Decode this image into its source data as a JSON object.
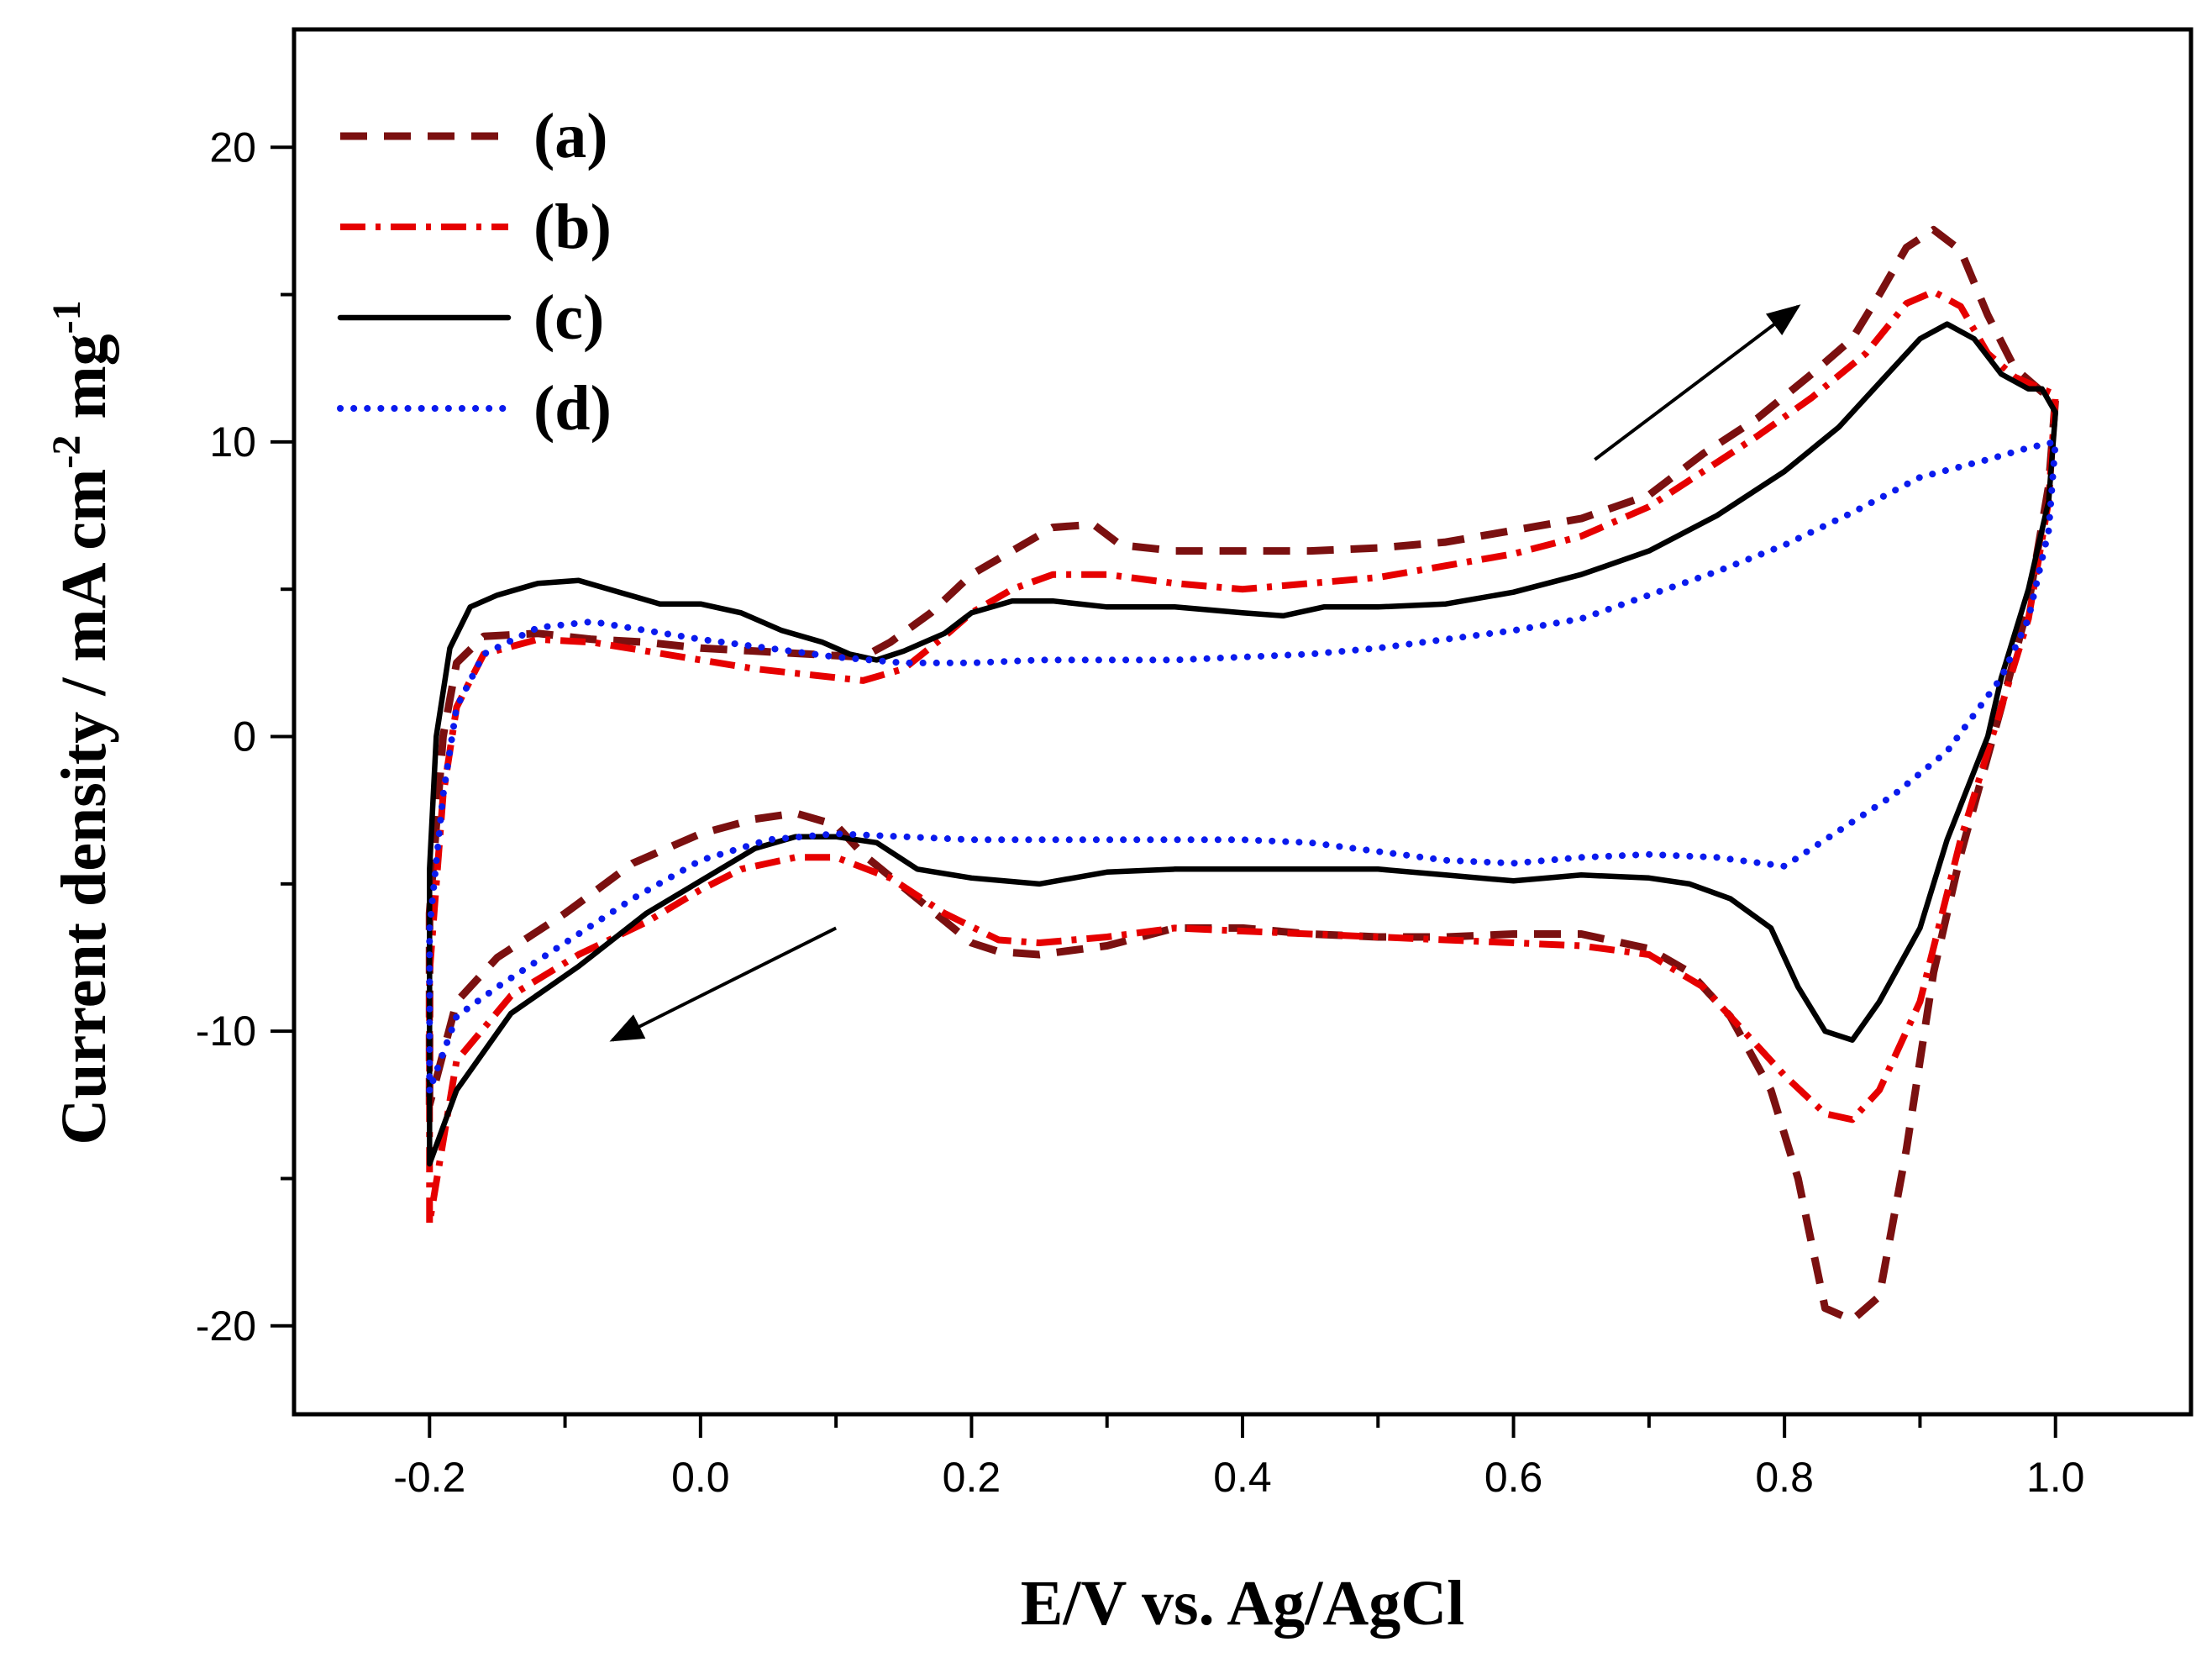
{
  "chart_data": {
    "type": "line",
    "xlabel": "E/V vs. Ag/AgCl",
    "ylabel_main": "Current density / mA cm",
    "ylabel_parts": [
      {
        "text": "Current density / mA cm",
        "sup": false
      },
      {
        "text": "-2",
        "sup": true
      },
      {
        "text": " mg",
        "sup": false
      },
      {
        "text": "-1",
        "sup": true
      }
    ],
    "xlim": [
      -0.3,
      1.1
    ],
    "ylim": [
      -23,
      24
    ],
    "xticks": [
      {
        "value": -0.2,
        "label": "-0.2"
      },
      {
        "value": 0.0,
        "label": "0.0"
      },
      {
        "value": 0.2,
        "label": "0.2"
      },
      {
        "value": 0.4,
        "label": "0.4"
      },
      {
        "value": 0.6,
        "label": "0.6"
      },
      {
        "value": 0.8,
        "label": "0.8"
      },
      {
        "value": 1.0,
        "label": "1.0"
      }
    ],
    "yticks": [
      {
        "value": -20,
        "label": "-20"
      },
      {
        "value": -10,
        "label": "-10"
      },
      {
        "value": 0,
        "label": "0"
      },
      {
        "value": 10,
        "label": "10"
      },
      {
        "value": 20,
        "label": "20"
      }
    ],
    "x_minor_step": 0.1,
    "y_minor_step": 5,
    "legend": {
      "position": "top-left"
    },
    "annotations": [
      {
        "name": "forward-scan-arrow",
        "from": [
          0.66,
          9.4
        ],
        "to": [
          0.81,
          14.6
        ]
      },
      {
        "name": "reverse-scan-arrow",
        "from": [
          0.1,
          -6.5
        ],
        "to": [
          -0.065,
          -10.3
        ]
      }
    ],
    "series": [
      {
        "name": "(a)",
        "color": "#7b1010",
        "dash": "dashed",
        "points": [
          [
            -0.2,
            -12.5
          ],
          [
            -0.2,
            -6
          ],
          [
            -0.19,
            0
          ],
          [
            -0.18,
            2.5
          ],
          [
            -0.16,
            3.4
          ],
          [
            -0.12,
            3.5
          ],
          [
            -0.08,
            3.3
          ],
          [
            -0.04,
            3.2
          ],
          [
            0.0,
            3.0
          ],
          [
            0.04,
            2.9
          ],
          [
            0.08,
            2.8
          ],
          [
            0.12,
            2.7
          ],
          [
            0.14,
            3.2
          ],
          [
            0.17,
            4.2
          ],
          [
            0.2,
            5.5
          ],
          [
            0.23,
            6.3
          ],
          [
            0.26,
            7.1
          ],
          [
            0.29,
            7.2
          ],
          [
            0.31,
            6.5
          ],
          [
            0.35,
            6.3
          ],
          [
            0.4,
            6.3
          ],
          [
            0.45,
            6.3
          ],
          [
            0.5,
            6.4
          ],
          [
            0.55,
            6.6
          ],
          [
            0.6,
            7.0
          ],
          [
            0.65,
            7.4
          ],
          [
            0.7,
            8.2
          ],
          [
            0.74,
            9.6
          ],
          [
            0.78,
            10.8
          ],
          [
            0.82,
            12.3
          ],
          [
            0.85,
            13.5
          ],
          [
            0.87,
            15.0
          ],
          [
            0.89,
            16.6
          ],
          [
            0.91,
            17.2
          ],
          [
            0.93,
            16.5
          ],
          [
            0.95,
            14.3
          ],
          [
            0.97,
            12.5
          ],
          [
            0.99,
            11.7
          ],
          [
            1.0,
            11.5
          ],
          [
            0.995,
            8.5
          ],
          [
            0.98,
            4.5
          ],
          [
            0.96,
            1.0
          ],
          [
            0.93,
            -4.0
          ],
          [
            0.91,
            -8.0
          ],
          [
            0.89,
            -14.0
          ],
          [
            0.87,
            -19.0
          ],
          [
            0.85,
            -19.8
          ],
          [
            0.83,
            -19.4
          ],
          [
            0.81,
            -15.0
          ],
          [
            0.79,
            -12.0
          ],
          [
            0.76,
            -9.5
          ],
          [
            0.73,
            -8.0
          ],
          [
            0.7,
            -7.2
          ],
          [
            0.65,
            -6.7
          ],
          [
            0.6,
            -6.7
          ],
          [
            0.55,
            -6.8
          ],
          [
            0.5,
            -6.8
          ],
          [
            0.45,
            -6.7
          ],
          [
            0.4,
            -6.5
          ],
          [
            0.35,
            -6.5
          ],
          [
            0.3,
            -7.1
          ],
          [
            0.25,
            -7.4
          ],
          [
            0.22,
            -7.3
          ],
          [
            0.2,
            -7.0
          ],
          [
            0.16,
            -5.5
          ],
          [
            0.12,
            -4.0
          ],
          [
            0.1,
            -3.0
          ],
          [
            0.07,
            -2.6
          ],
          [
            0.04,
            -2.8
          ],
          [
            0.0,
            -3.3
          ],
          [
            -0.05,
            -4.3
          ],
          [
            -0.1,
            -6.0
          ],
          [
            -0.15,
            -7.5
          ],
          [
            -0.18,
            -9.0
          ],
          [
            -0.2,
            -12.5
          ]
        ]
      },
      {
        "name": "(b)",
        "color": "#e60000",
        "dash": "dashdot",
        "points": [
          [
            -0.2,
            -16.5
          ],
          [
            -0.2,
            -8.0
          ],
          [
            -0.19,
            -2.0
          ],
          [
            -0.18,
            1.0
          ],
          [
            -0.16,
            2.8
          ],
          [
            -0.12,
            3.3
          ],
          [
            -0.08,
            3.2
          ],
          [
            -0.04,
            2.9
          ],
          [
            0.0,
            2.6
          ],
          [
            0.04,
            2.3
          ],
          [
            0.08,
            2.1
          ],
          [
            0.12,
            1.9
          ],
          [
            0.15,
            2.3
          ],
          [
            0.18,
            3.4
          ],
          [
            0.2,
            4.2
          ],
          [
            0.23,
            5.0
          ],
          [
            0.26,
            5.5
          ],
          [
            0.3,
            5.5
          ],
          [
            0.35,
            5.2
          ],
          [
            0.4,
            5.0
          ],
          [
            0.45,
            5.2
          ],
          [
            0.5,
            5.4
          ],
          [
            0.55,
            5.8
          ],
          [
            0.6,
            6.2
          ],
          [
            0.65,
            6.8
          ],
          [
            0.7,
            7.8
          ],
          [
            0.74,
            9.0
          ],
          [
            0.78,
            10.2
          ],
          [
            0.82,
            11.5
          ],
          [
            0.86,
            13.0
          ],
          [
            0.89,
            14.7
          ],
          [
            0.91,
            15.1
          ],
          [
            0.93,
            14.6
          ],
          [
            0.95,
            13.0
          ],
          [
            0.97,
            12.2
          ],
          [
            0.99,
            11.8
          ],
          [
            1.0,
            11.6
          ],
          [
            0.995,
            8.0
          ],
          [
            0.98,
            4.0
          ],
          [
            0.96,
            1.0
          ],
          [
            0.93,
            -3.5
          ],
          [
            0.9,
            -9.0
          ],
          [
            0.87,
            -12.0
          ],
          [
            0.85,
            -13.0
          ],
          [
            0.83,
            -12.8
          ],
          [
            0.8,
            -11.5
          ],
          [
            0.77,
            -10.0
          ],
          [
            0.74,
            -8.5
          ],
          [
            0.7,
            -7.4
          ],
          [
            0.65,
            -7.1
          ],
          [
            0.6,
            -7.0
          ],
          [
            0.55,
            -6.9
          ],
          [
            0.5,
            -6.8
          ],
          [
            0.45,
            -6.7
          ],
          [
            0.4,
            -6.6
          ],
          [
            0.35,
            -6.5
          ],
          [
            0.3,
            -6.8
          ],
          [
            0.25,
            -7.0
          ],
          [
            0.22,
            -6.9
          ],
          [
            0.18,
            -6.0
          ],
          [
            0.14,
            -4.8
          ],
          [
            0.1,
            -4.1
          ],
          [
            0.07,
            -4.1
          ],
          [
            0.03,
            -4.5
          ],
          [
            0.0,
            -5.2
          ],
          [
            -0.04,
            -6.3
          ],
          [
            -0.09,
            -7.4
          ],
          [
            -0.14,
            -8.8
          ],
          [
            -0.18,
            -11.0
          ],
          [
            -0.2,
            -16.5
          ]
        ]
      },
      {
        "name": "(c)",
        "color": "#000000",
        "dash": "solid",
        "points": [
          [
            -0.2,
            -14.5
          ],
          [
            -0.2,
            -4.5
          ],
          [
            -0.195,
            0.0
          ],
          [
            -0.185,
            3.0
          ],
          [
            -0.17,
            4.4
          ],
          [
            -0.15,
            4.8
          ],
          [
            -0.12,
            5.2
          ],
          [
            -0.09,
            5.3
          ],
          [
            -0.06,
            4.9
          ],
          [
            -0.03,
            4.5
          ],
          [
            0.0,
            4.5
          ],
          [
            0.03,
            4.2
          ],
          [
            0.06,
            3.6
          ],
          [
            0.09,
            3.2
          ],
          [
            0.11,
            2.8
          ],
          [
            0.13,
            2.6
          ],
          [
            0.15,
            2.9
          ],
          [
            0.18,
            3.5
          ],
          [
            0.2,
            4.2
          ],
          [
            0.23,
            4.6
          ],
          [
            0.26,
            4.6
          ],
          [
            0.3,
            4.4
          ],
          [
            0.35,
            4.4
          ],
          [
            0.4,
            4.2
          ],
          [
            0.43,
            4.1
          ],
          [
            0.46,
            4.4
          ],
          [
            0.5,
            4.4
          ],
          [
            0.55,
            4.5
          ],
          [
            0.6,
            4.9
          ],
          [
            0.65,
            5.5
          ],
          [
            0.7,
            6.3
          ],
          [
            0.75,
            7.5
          ],
          [
            0.8,
            9.0
          ],
          [
            0.84,
            10.5
          ],
          [
            0.87,
            12.0
          ],
          [
            0.9,
            13.5
          ],
          [
            0.92,
            14.0
          ],
          [
            0.94,
            13.5
          ],
          [
            0.96,
            12.3
          ],
          [
            0.98,
            11.8
          ],
          [
            0.99,
            11.8
          ],
          [
            1.0,
            11.0
          ],
          [
            0.995,
            8.0
          ],
          [
            0.98,
            5.0
          ],
          [
            0.96,
            2.0
          ],
          [
            0.95,
            0.0
          ],
          [
            0.92,
            -3.5
          ],
          [
            0.9,
            -6.5
          ],
          [
            0.87,
            -9.0
          ],
          [
            0.85,
            -10.3
          ],
          [
            0.83,
            -10.0
          ],
          [
            0.81,
            -8.5
          ],
          [
            0.79,
            -6.5
          ],
          [
            0.76,
            -5.5
          ],
          [
            0.73,
            -5.0
          ],
          [
            0.7,
            -4.8
          ],
          [
            0.65,
            -4.7
          ],
          [
            0.6,
            -4.9
          ],
          [
            0.55,
            -4.7
          ],
          [
            0.5,
            -4.5
          ],
          [
            0.45,
            -4.5
          ],
          [
            0.4,
            -4.5
          ],
          [
            0.35,
            -4.5
          ],
          [
            0.3,
            -4.6
          ],
          [
            0.25,
            -5.0
          ],
          [
            0.2,
            -4.8
          ],
          [
            0.16,
            -4.5
          ],
          [
            0.13,
            -3.6
          ],
          [
            0.1,
            -3.4
          ],
          [
            0.07,
            -3.4
          ],
          [
            0.04,
            -3.8
          ],
          [
            0.0,
            -4.9
          ],
          [
            -0.04,
            -6.0
          ],
          [
            -0.09,
            -7.8
          ],
          [
            -0.14,
            -9.4
          ],
          [
            -0.18,
            -12.0
          ],
          [
            -0.2,
            -14.5
          ]
        ]
      },
      {
        "name": "(d)",
        "color": "#0a1aee",
        "dash": "dotted",
        "points": [
          [
            -0.2,
            -12.0
          ],
          [
            -0.2,
            -6.5
          ],
          [
            -0.19,
            -2.0
          ],
          [
            -0.18,
            1.0
          ],
          [
            -0.16,
            2.8
          ],
          [
            -0.12,
            3.7
          ],
          [
            -0.08,
            3.9
          ],
          [
            -0.04,
            3.6
          ],
          [
            0.0,
            3.3
          ],
          [
            0.05,
            3.0
          ],
          [
            0.1,
            2.7
          ],
          [
            0.15,
            2.5
          ],
          [
            0.2,
            2.5
          ],
          [
            0.25,
            2.6
          ],
          [
            0.3,
            2.6
          ],
          [
            0.35,
            2.6
          ],
          [
            0.4,
            2.7
          ],
          [
            0.45,
            2.8
          ],
          [
            0.5,
            3.0
          ],
          [
            0.55,
            3.3
          ],
          [
            0.6,
            3.6
          ],
          [
            0.65,
            4.0
          ],
          [
            0.7,
            4.8
          ],
          [
            0.75,
            5.6
          ],
          [
            0.8,
            6.5
          ],
          [
            0.85,
            7.6
          ],
          [
            0.9,
            8.8
          ],
          [
            0.95,
            9.4
          ],
          [
            0.98,
            9.8
          ],
          [
            1.0,
            10.0
          ],
          [
            0.995,
            7.0
          ],
          [
            0.98,
            4.0
          ],
          [
            0.96,
            2.0
          ],
          [
            0.92,
            -0.5
          ],
          [
            0.88,
            -2.0
          ],
          [
            0.84,
            -3.2
          ],
          [
            0.8,
            -4.4
          ],
          [
            0.75,
            -4.1
          ],
          [
            0.7,
            -4.0
          ],
          [
            0.65,
            -4.1
          ],
          [
            0.6,
            -4.3
          ],
          [
            0.55,
            -4.2
          ],
          [
            0.5,
            -3.9
          ],
          [
            0.45,
            -3.6
          ],
          [
            0.4,
            -3.5
          ],
          [
            0.35,
            -3.5
          ],
          [
            0.3,
            -3.5
          ],
          [
            0.25,
            -3.5
          ],
          [
            0.2,
            -3.5
          ],
          [
            0.15,
            -3.4
          ],
          [
            0.1,
            -3.3
          ],
          [
            0.05,
            -3.5
          ],
          [
            0.0,
            -4.2
          ],
          [
            -0.05,
            -5.5
          ],
          [
            -0.1,
            -7.0
          ],
          [
            -0.15,
            -8.5
          ],
          [
            -0.18,
            -9.5
          ],
          [
            -0.2,
            -12.0
          ]
        ]
      }
    ]
  }
}
